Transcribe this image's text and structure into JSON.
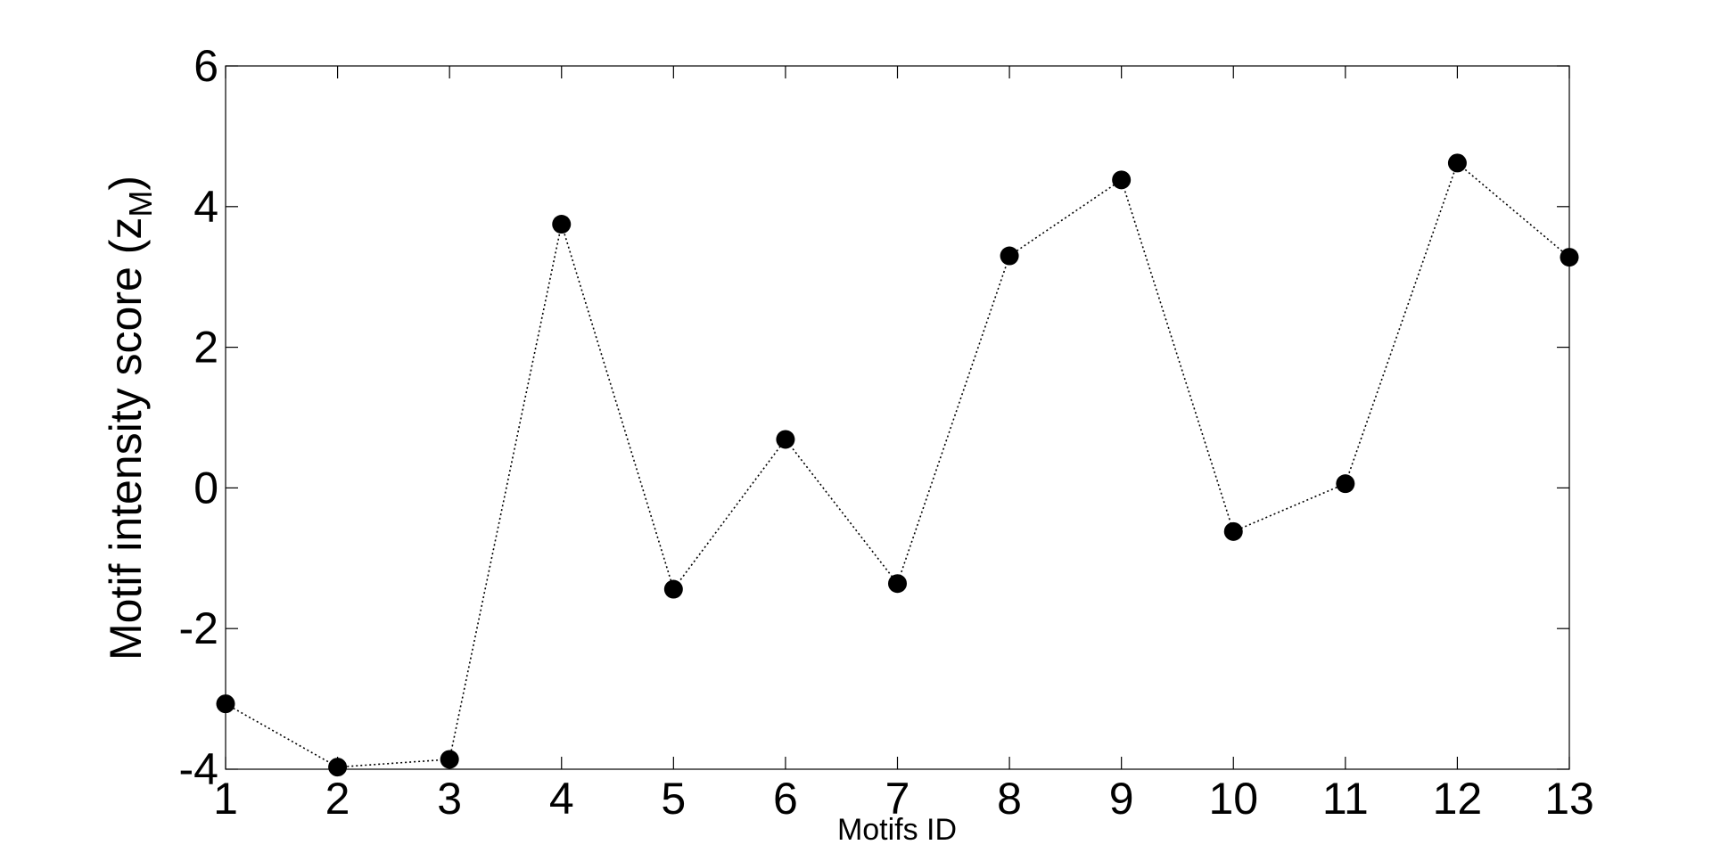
{
  "chart_data": {
    "type": "line",
    "x": [
      1,
      2,
      3,
      4,
      5,
      6,
      7,
      8,
      9,
      10,
      11,
      12,
      13
    ],
    "series": [
      {
        "color": "#000000",
        "values": [
          -3.07,
          -3.97,
          -3.86,
          3.75,
          -1.44,
          0.69,
          -1.36,
          3.3,
          4.38,
          -0.62,
          0.06,
          4.62,
          3.28
        ]
      }
    ],
    "xlabel": "Motifs ID",
    "ylabel": {
      "text": "Motif intensity score (z",
      "subscript": "M",
      "suffix": ")"
    },
    "xlim": [
      1,
      13
    ],
    "xticks": [
      1,
      2,
      3,
      4,
      5,
      6,
      7,
      8,
      9,
      10,
      11,
      12,
      13
    ],
    "ylim": [
      -4,
      6
    ],
    "yticks": [
      -4,
      -2,
      0,
      2,
      4,
      6
    ],
    "line_style": "dotted",
    "marker": "circle",
    "grid": false
  }
}
